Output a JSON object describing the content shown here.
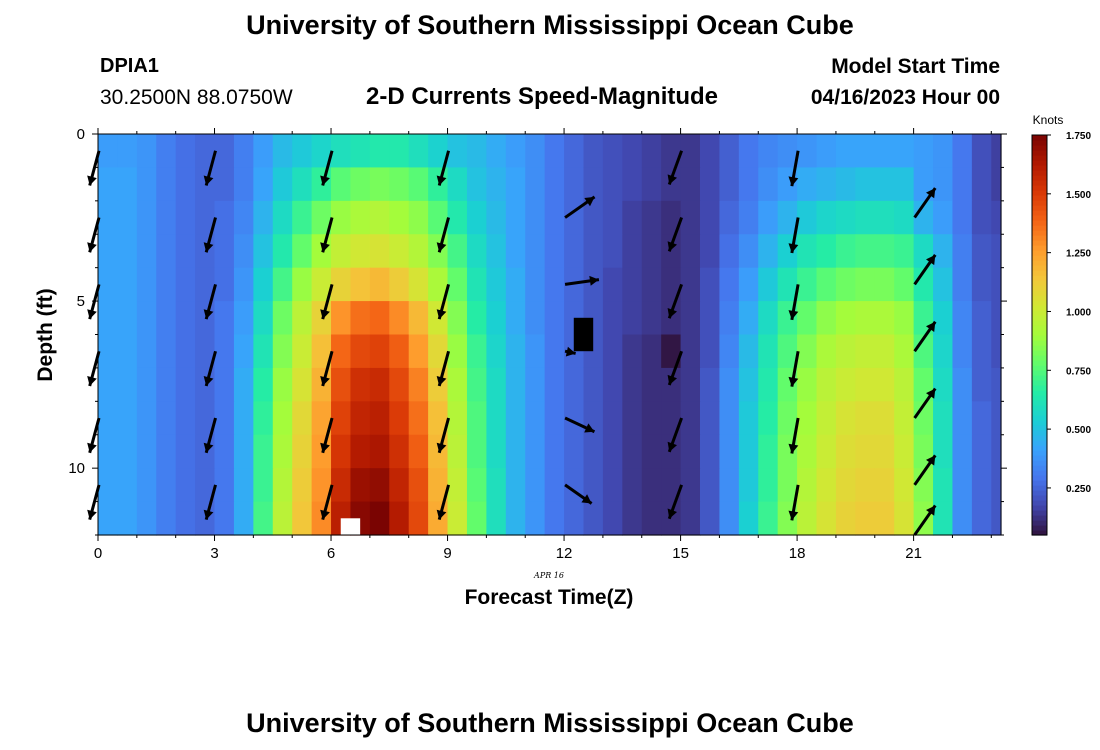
{
  "header": {
    "title": "University of Southern Mississippi Ocean Cube",
    "station_id": "DPIA1",
    "station_coords": "30.2500N  88.0750W",
    "subtitle": "2-D Currents Speed-Magnitude",
    "model_start_label": "Model Start Time",
    "model_start_value": "04/16/2023 Hour 00"
  },
  "footer": {
    "title": "University of Southern Mississippi Ocean Cube"
  },
  "chart_data": {
    "type": "heatmap",
    "xlabel": "Forecast Time(Z)",
    "ylabel": "Depth (ft)",
    "date_label": "APR 16",
    "xlim": [
      0,
      23.25
    ],
    "ylim": [
      0,
      12
    ],
    "y_inverted": true,
    "x_ticks": [
      0,
      3,
      6,
      9,
      12,
      15,
      18,
      21
    ],
    "y_ticks": [
      0,
      5,
      10
    ],
    "colorbar": {
      "label": "Knots",
      "min": 0.05,
      "max": 1.75,
      "ticks": [
        "0.250",
        "0.500",
        "0.750",
        "1.000",
        "1.250",
        "1.500",
        "1.750"
      ],
      "colors": [
        "#30123b",
        "#4145ab",
        "#4675ed",
        "#39a2fc",
        "#1bcfd4",
        "#24eca6",
        "#61fc6c",
        "#a4fc3b",
        "#d1e834",
        "#f3c63a",
        "#fe9b2d",
        "#f36315",
        "#d93806",
        "#b11901",
        "#7a0402"
      ]
    },
    "time_cell_width_h": 0.5,
    "depth_rows_ft": [
      0.5,
      1.5,
      2.5,
      3.5,
      4.5,
      5.5,
      6.5,
      7.5,
      8.5,
      9.5,
      10.5,
      11.5
    ],
    "speed_knots": [
      [
        0.4,
        0.4,
        0.38,
        0.32,
        0.28,
        0.26,
        0.26,
        0.32,
        0.4,
        0.48,
        0.52,
        0.56,
        0.6,
        0.62,
        0.64,
        0.64,
        0.6,
        0.55,
        0.5,
        0.48,
        0.44,
        0.4,
        0.36,
        0.3,
        0.26,
        0.22,
        0.2,
        0.18,
        0.16,
        0.14,
        0.14,
        0.18,
        0.24,
        0.3,
        0.34,
        0.36,
        0.38,
        0.4,
        0.42,
        0.42,
        0.42,
        0.42,
        0.4,
        0.38,
        0.3,
        0.2,
        0.16
      ],
      [
        0.42,
        0.42,
        0.38,
        0.32,
        0.28,
        0.26,
        0.26,
        0.32,
        0.42,
        0.52,
        0.6,
        0.68,
        0.76,
        0.8,
        0.82,
        0.8,
        0.76,
        0.68,
        0.58,
        0.5,
        0.46,
        0.42,
        0.36,
        0.3,
        0.26,
        0.22,
        0.2,
        0.18,
        0.16,
        0.14,
        0.14,
        0.18,
        0.24,
        0.3,
        0.36,
        0.4,
        0.44,
        0.46,
        0.48,
        0.5,
        0.5,
        0.5,
        0.4,
        0.38,
        0.3,
        0.2,
        0.16
      ],
      [
        0.42,
        0.42,
        0.38,
        0.32,
        0.28,
        0.26,
        0.28,
        0.34,
        0.46,
        0.58,
        0.7,
        0.8,
        0.88,
        0.92,
        0.94,
        0.9,
        0.86,
        0.76,
        0.64,
        0.54,
        0.48,
        0.42,
        0.36,
        0.3,
        0.26,
        0.22,
        0.2,
        0.16,
        0.14,
        0.12,
        0.14,
        0.18,
        0.26,
        0.32,
        0.4,
        0.46,
        0.52,
        0.56,
        0.58,
        0.6,
        0.6,
        0.58,
        0.46,
        0.4,
        0.3,
        0.2,
        0.18
      ],
      [
        0.42,
        0.42,
        0.38,
        0.32,
        0.28,
        0.26,
        0.28,
        0.36,
        0.5,
        0.64,
        0.78,
        0.9,
        0.98,
        1.02,
        1.04,
        1.0,
        0.94,
        0.84,
        0.72,
        0.58,
        0.5,
        0.42,
        0.36,
        0.3,
        0.26,
        0.22,
        0.2,
        0.16,
        0.14,
        0.12,
        0.14,
        0.18,
        0.28,
        0.36,
        0.46,
        0.54,
        0.62,
        0.66,
        0.7,
        0.72,
        0.72,
        0.7,
        0.58,
        0.46,
        0.32,
        0.22,
        0.2
      ],
      [
        0.42,
        0.42,
        0.38,
        0.32,
        0.28,
        0.26,
        0.28,
        0.38,
        0.54,
        0.72,
        0.88,
        1.0,
        1.1,
        1.15,
        1.18,
        1.12,
        1.04,
        0.92,
        0.78,
        0.62,
        0.52,
        0.44,
        0.36,
        0.3,
        0.26,
        0.22,
        0.18,
        0.16,
        0.14,
        0.12,
        0.14,
        0.2,
        0.3,
        0.4,
        0.52,
        0.62,
        0.7,
        0.76,
        0.8,
        0.82,
        0.82,
        0.78,
        0.64,
        0.5,
        0.32,
        0.22,
        0.2
      ],
      [
        0.42,
        0.42,
        0.38,
        0.32,
        0.28,
        0.26,
        0.3,
        0.4,
        0.58,
        0.8,
        0.96,
        1.1,
        1.28,
        1.36,
        1.38,
        1.3,
        1.18,
        1.02,
        0.84,
        0.66,
        0.54,
        0.44,
        0.36,
        0.3,
        0.26,
        0.22,
        0.18,
        0.16,
        0.14,
        0.12,
        0.14,
        0.2,
        0.32,
        0.44,
        0.58,
        0.7,
        0.78,
        0.86,
        0.9,
        0.92,
        0.92,
        0.88,
        0.7,
        0.54,
        0.34,
        0.24,
        0.2
      ],
      [
        0.42,
        0.42,
        0.38,
        0.32,
        0.28,
        0.26,
        0.3,
        0.42,
        0.62,
        0.84,
        1.0,
        1.16,
        1.38,
        1.46,
        1.48,
        1.4,
        1.26,
        1.08,
        0.88,
        0.7,
        0.56,
        0.46,
        0.38,
        0.3,
        0.26,
        0.22,
        0.18,
        0.14,
        0.12,
        0.06,
        0.14,
        0.2,
        0.34,
        0.48,
        0.62,
        0.74,
        0.84,
        0.92,
        0.96,
        0.98,
        0.98,
        0.92,
        0.74,
        0.56,
        0.34,
        0.24,
        0.2
      ],
      [
        0.42,
        0.42,
        0.38,
        0.32,
        0.28,
        0.26,
        0.3,
        0.44,
        0.66,
        0.88,
        1.04,
        1.2,
        1.44,
        1.54,
        1.56,
        1.46,
        1.32,
        1.12,
        0.92,
        0.72,
        0.58,
        0.46,
        0.38,
        0.3,
        0.26,
        0.22,
        0.18,
        0.14,
        0.12,
        0.12,
        0.14,
        0.22,
        0.36,
        0.5,
        0.64,
        0.78,
        0.88,
        0.96,
        1.0,
        1.02,
        1.02,
        0.96,
        0.78,
        0.58,
        0.36,
        0.24,
        0.22
      ],
      [
        0.42,
        0.42,
        0.38,
        0.32,
        0.28,
        0.26,
        0.3,
        0.44,
        0.68,
        0.9,
        1.08,
        1.24,
        1.48,
        1.58,
        1.6,
        1.5,
        1.36,
        1.16,
        0.94,
        0.74,
        0.58,
        0.46,
        0.38,
        0.3,
        0.26,
        0.22,
        0.18,
        0.14,
        0.12,
        0.12,
        0.14,
        0.22,
        0.36,
        0.52,
        0.66,
        0.8,
        0.9,
        0.98,
        1.04,
        1.06,
        1.06,
        0.98,
        0.8,
        0.6,
        0.36,
        0.26,
        0.22
      ],
      [
        0.42,
        0.42,
        0.38,
        0.32,
        0.28,
        0.26,
        0.3,
        0.44,
        0.7,
        0.92,
        1.1,
        1.26,
        1.52,
        1.62,
        1.64,
        1.54,
        1.4,
        1.18,
        0.96,
        0.74,
        0.58,
        0.46,
        0.38,
        0.3,
        0.26,
        0.22,
        0.18,
        0.14,
        0.12,
        0.12,
        0.14,
        0.22,
        0.36,
        0.52,
        0.68,
        0.82,
        0.92,
        1.0,
        1.06,
        1.08,
        1.08,
        1.0,
        0.82,
        0.6,
        0.36,
        0.26,
        0.22
      ],
      [
        0.42,
        0.42,
        0.38,
        0.32,
        0.28,
        0.26,
        0.3,
        0.44,
        0.7,
        0.94,
        1.12,
        1.28,
        1.56,
        1.68,
        1.7,
        1.58,
        1.44,
        1.2,
        0.98,
        0.76,
        0.6,
        0.46,
        0.38,
        0.3,
        0.26,
        0.22,
        0.18,
        0.14,
        0.12,
        0.12,
        0.14,
        0.22,
        0.36,
        0.52,
        0.68,
        0.82,
        0.94,
        1.02,
        1.08,
        1.1,
        1.1,
        1.02,
        0.84,
        0.62,
        0.36,
        0.26,
        0.22
      ],
      [
        0.42,
        0.42,
        0.38,
        0.32,
        0.28,
        0.26,
        0.3,
        0.44,
        0.72,
        0.96,
        1.14,
        1.3,
        1.6,
        1.72,
        1.75,
        1.62,
        1.46,
        1.22,
        1.0,
        0.78,
        0.6,
        0.46,
        0.38,
        0.3,
        0.26,
        0.22,
        0.18,
        0.14,
        0.12,
        0.12,
        0.14,
        0.22,
        0.36,
        0.54,
        0.7,
        0.84,
        0.96,
        1.04,
        1.1,
        1.12,
        1.12,
        1.04,
        0.86,
        0.62,
        0.36,
        0.26,
        0.22
      ]
    ],
    "vectors": [
      {
        "time": 0,
        "depths": [
          0.5,
          2.5,
          4.5,
          6.5,
          8.5,
          10.5
        ],
        "angle_deg": 105,
        "length": 1.0
      },
      {
        "time": 3,
        "depths": [
          0.5,
          2.5,
          4.5,
          6.5,
          8.5,
          10.5
        ],
        "angle_deg": 105,
        "length": 1.0
      },
      {
        "time": 6,
        "depths": [
          0.5,
          2.5,
          4.5,
          6.5,
          8.5,
          10.5
        ],
        "angle_deg": 105,
        "length": 1.0
      },
      {
        "time": 9,
        "depths": [
          0.5,
          2.5,
          4.5,
          6.5,
          8.5,
          10.5
        ],
        "angle_deg": 105,
        "length": 1.0
      },
      {
        "time": 12,
        "depths": [
          2.5,
          4.5,
          6.5,
          8.5,
          10.5
        ],
        "angles_deg": [
          -35,
          -8,
          12,
          25,
          35
        ],
        "lengths": [
          1.0,
          0.95,
          0.3,
          0.9,
          0.9
        ]
      },
      {
        "time": 15,
        "depths": [
          0.5,
          2.5,
          4.5,
          6.5,
          8.5,
          10.5
        ],
        "angle_deg": 110,
        "length": 1.0
      },
      {
        "time": 18,
        "depths": [
          0.5,
          2.5,
          4.5,
          6.5,
          8.5,
          10.5
        ],
        "angle_deg": 100,
        "length": 1.0
      },
      {
        "time": 21,
        "depths": [
          2.5,
          4.5,
          6.5,
          8.5,
          10.5,
          12.0
        ],
        "angle_deg": -55,
        "length": 1.0
      }
    ],
    "missing_cells": [
      {
        "time_from": 12.25,
        "time_to": 12.75,
        "depth_from": 5.5,
        "depth_to": 6.5,
        "color": "#000000"
      },
      {
        "time_from": 6.25,
        "time_to": 6.75,
        "depth_from": 11.5,
        "depth_to": 12,
        "color": "#ffffff"
      }
    ]
  }
}
